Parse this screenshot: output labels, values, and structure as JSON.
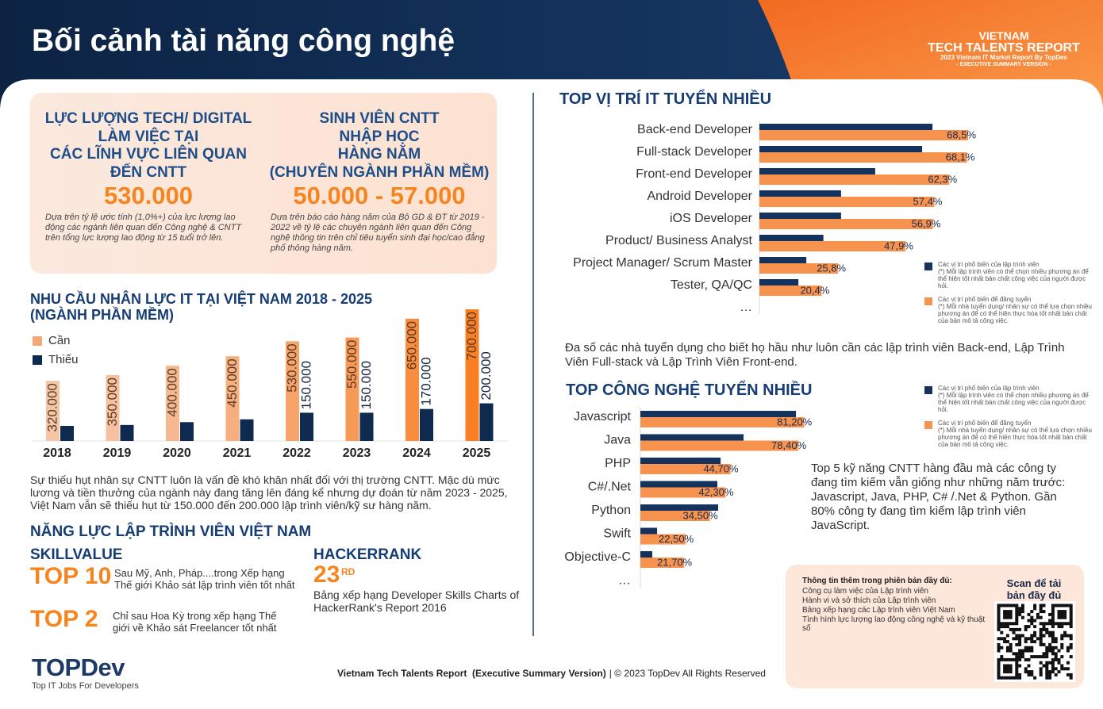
{
  "header": {
    "title": "Bối cảnh tài năng công nghệ",
    "brand": [
      "VIETNAM",
      "TECH TALENTS REPORT",
      "2023 Vietnam IT Market Report By TopDev",
      "- EXECUTIVE SUMMARY VERSION -"
    ]
  },
  "stats": [
    {
      "label": [
        "LỰC LƯỢNG TECH/ DIGITAL",
        "LÀM VIỆC TẠI",
        "CÁC LĨNH VỰC LIÊN QUAN",
        "ĐẾN CNTT"
      ],
      "value": "530.000",
      "note": "Dựa trên tỷ lệ ước tính (1,0%+) của lực lượng lao động các ngành liên quan đến Công nghệ & CNTT trên tổng lực lượng lao động từ 15 tuổi trở lên."
    },
    {
      "label": [
        "SINH VIÊN CNTT",
        "NHẬP HỌC",
        "HÀNG NĂM",
        "(CHUYÊN NGÀNH PHẦN MỀM)"
      ],
      "value": "50.000 - 57.000",
      "note": "Dựa trên báo cáo hàng năm của Bộ GD & ĐT từ 2019 - 2022 về tỷ lệ các chuyên ngành liên quan đến Công nghệ thông tin trên chỉ tiêu tuyển sinh đại học/cao đẳng phổ thông hàng năm."
    }
  ],
  "chart_data": [
    {
      "type": "bar",
      "title": [
        "NHU CẦU NHÂN LỰC IT TẠI VIỆT NAM 2018 - 2025",
        "(NGÀNH PHẦN MỀM)"
      ],
      "categories": [
        "2018",
        "2019",
        "2020",
        "2021",
        "2022",
        "2023",
        "2024",
        "2025"
      ],
      "series": [
        {
          "name": "Cần",
          "color": "#f4a877",
          "colors": [
            "#f5c6a5",
            "#f5c1a0",
            "#f6b88f",
            "#f6b080",
            "#f7a46a",
            "#f79a58",
            "#f88d40",
            "#f97f24"
          ],
          "values": [
            320000,
            350000,
            400000,
            450000,
            530000,
            550000,
            650000,
            700000
          ],
          "value_labels": [
            "320.000",
            "350.000",
            "400.000",
            "450.000",
            "530.000",
            "550.000",
            "650.000",
            "700.000"
          ]
        },
        {
          "name": "Thiếu",
          "color": "#0f2a4f",
          "values": [
            80000,
            85000,
            100000,
            115000,
            150000,
            150000,
            170000,
            200000
          ],
          "value_labels": [
            null,
            null,
            null,
            null,
            "150.000",
            "150.000",
            "170.000",
            "200.000"
          ]
        }
      ],
      "description": "Sự thiếu hụt nhân sự CNTT luôn là vấn đề khó khăn nhất đối với thị trường CNTT. Mặc dù mức lương và tiền thưởng của ngành này đang tăng lên đáng kể nhưng dự đoán từ năm 2023 - 2025, Việt Nam vẫn sẽ thiếu hụt từ 150.000 đến 200.000 lập trình viên/kỹ sư hàng năm."
    },
    {
      "type": "hbar",
      "title": "TOP VỊ TRÍ IT TUYỂN NHIỀU",
      "categories": [
        "Back-end Developer",
        "Full-stack Developer",
        "Front-end Developer",
        "Android Developer",
        "iOS Developer",
        "Product/ Business Analyst",
        "Project Manager/ Scrum Master",
        "Tester, QA/QC",
        "…"
      ],
      "series": [
        {
          "name": "Các vị trí phổ biến của lập trình viên",
          "note": "(*) Mỗi lập trình viên có thể chọn nhiều phương án để thể hiện tốt nhất bản chất công việc của người được hỏi.",
          "color": "#14325c",
          "values": [
            56.8,
            53.4,
            38,
            26.8,
            26.8,
            21,
            15.4,
            12.8,
            null
          ]
        },
        {
          "name": "Các vị trí phổ biến để đăng tuyển",
          "note": "(*) Mỗi nhà tuyển dụng/ nhân sự có thể lựa chọn nhiều phương án để có thể hiện thực hóa tốt nhất bản chất của bản mô tả công việc.",
          "color": "#f7924f",
          "values": [
            68.5,
            68.1,
            62.3,
            57.4,
            56.9,
            47.9,
            25.8,
            20.4,
            null
          ],
          "value_labels": [
            "68,5%",
            "68,1%",
            "62,3%",
            "57,4%",
            "56,9%",
            "47,9%",
            "25,8%",
            "20,4%",
            null
          ]
        }
      ],
      "description": "Đa số các nhà tuyển dụng cho biết họ hầu như luôn cần các lập trình viên Back-end, Lập Trình Viên Full-stack và Lập Trình Viên Front-end."
    },
    {
      "type": "hbar",
      "title": "TOP CÔNG NGHỆ TUYỂN NHIỀU",
      "categories": [
        "Javascript",
        "Java",
        "PHP",
        "C#/.Net",
        "Python",
        "Swift",
        "Objective-C",
        "…"
      ],
      "series": [
        {
          "name": "Các vị trí phổ biến của lập trình viên",
          "note": "(*) Mỗi lập trình viên có thể chọn nhiều phương án để thể hiện tốt nhất bản chất công việc của người được hỏi.",
          "color": "#14325c",
          "values": [
            77.2,
            51.2,
            39.8,
            38.2,
            38.6,
            8.3,
            5.9,
            null
          ]
        },
        {
          "name": "Các vị trí phổ biến để đăng tuyển",
          "note": "(*) Mỗi nhà tuyển dụng/ nhân sự có thể lựa chọn nhiều phương án để có thể hiện thực hóa tốt nhất bản chất của bản mô tả công việc.",
          "color": "#f7924f",
          "values": [
            81.2,
            78.4,
            44.7,
            42.3,
            34.5,
            22.5,
            21.7,
            null
          ],
          "value_labels": [
            "81,20%",
            "78,40%",
            "44,70%",
            "42,30%",
            "34,50%",
            "22,50%",
            "21,70%",
            null
          ]
        }
      ],
      "description": "Top 5 kỹ năng CNTT hàng đầu mà các công ty đang tìm kiếm vẫn giống như những năm trước: Javascript, Java, PHP, C# /.Net & Python. Gần 80% công ty đang tìm kiếm lập trình viên JavaScript."
    }
  ],
  "skills": {
    "title": "NĂNG LỰC LẬP TRÌNH VIÊN VIỆT NAM",
    "skillvalue": {
      "name": "SKILLVALUE",
      "items": [
        {
          "rank": "TOP 10",
          "text": "Sau Mỹ, Anh, Pháp....trong Xếp hạng Thế giới Khảo sát lập trình viên tốt nhất"
        },
        {
          "rank": "TOP 2",
          "text": "Chỉ sau Hoa Kỳ trong xếp hạng Thế giới về Khảo sát Freelancer tốt nhất"
        }
      ]
    },
    "hackerrank": {
      "name": "HACKERRANK",
      "rank": "23",
      "suffix": "RD",
      "text": "Bảng xếp hạng Developer Skills Charts of HackerRank's Report 2016"
    }
  },
  "info": {
    "title": "Thông tin thêm trong phiên bản đầy đủ:",
    "items": [
      "Công cụ làm việc của Lập trình viên",
      "Hành vi và sở thích của Lập trình viên",
      "Bảng xếp hạng các Lập trình viên Việt Nam",
      "Tình hình lực lượng lao động công nghệ và kỹ thuật số"
    ],
    "scan": [
      "Scan để tải",
      "bản đầy đủ"
    ]
  },
  "footer": {
    "logo": "TOPDev",
    "tagline": "Top IT Jobs For Developers",
    "report": "Vietnam Tech Talents Report  (Executive Summary Version)",
    "copyright": "| © 2023 TopDev All Rights Reserved"
  }
}
